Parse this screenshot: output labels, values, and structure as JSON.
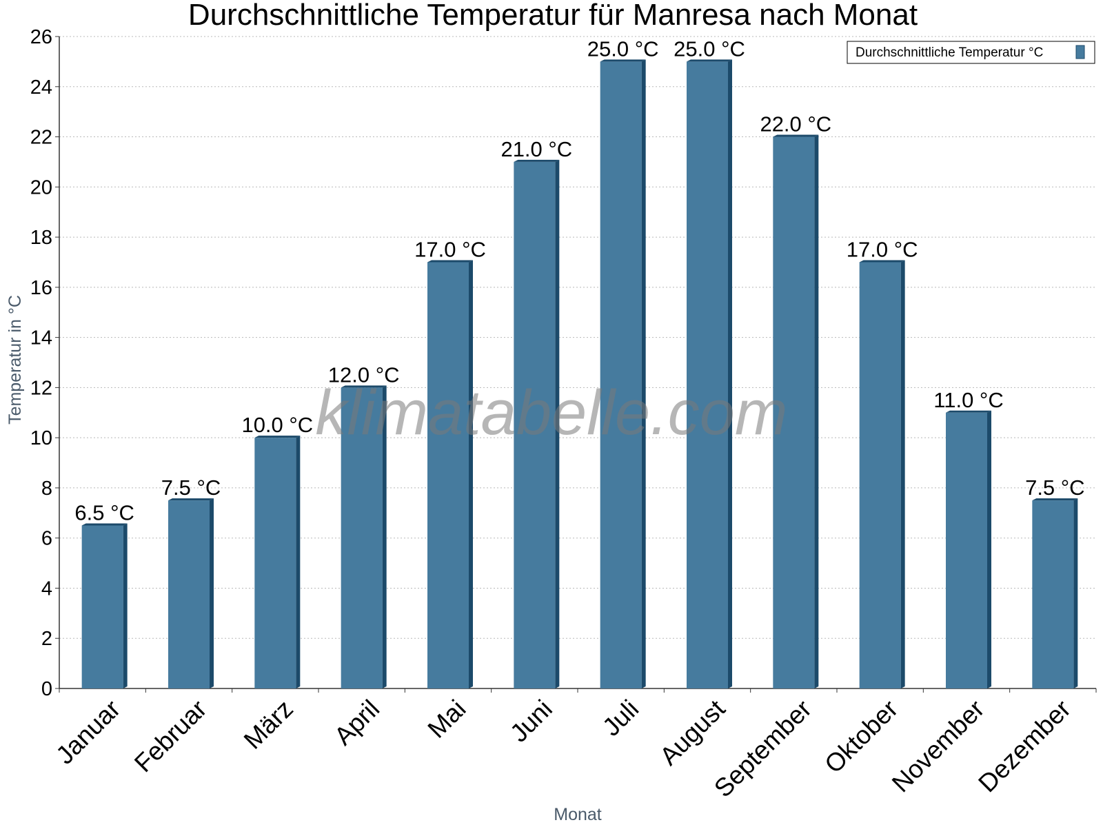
{
  "chart_data": {
    "type": "bar",
    "title": "Durchschnittliche Temperatur für Manresa nach Monat",
    "xlabel": "Monat",
    "ylabel": "Temperatur in °C",
    "categories": [
      "Januar",
      "Februar",
      "März",
      "April",
      "Mai",
      "Juni",
      "Juli",
      "August",
      "September",
      "Oktober",
      "November",
      "Dezember"
    ],
    "series": [
      {
        "name": "Durchschnittliche Temperatur °C",
        "values": [
          6.5,
          7.5,
          10.0,
          12.0,
          17.0,
          21.0,
          25.0,
          25.0,
          22.0,
          17.0,
          11.0,
          7.5
        ],
        "data_labels": [
          "6.5 °C",
          "7.5 °C",
          "10.0 °C",
          "12.0 °C",
          "17.0 °C",
          "21.0 °C",
          "25.0 °C",
          "25.0 °C",
          "22.0 °C",
          "17.0 °C",
          "11.0 °C",
          "7.5 °C"
        ]
      }
    ],
    "ylim": [
      0,
      26
    ],
    "yticks": [
      0,
      2,
      4,
      6,
      8,
      10,
      12,
      14,
      16,
      18,
      20,
      22,
      24,
      26
    ],
    "grid": true,
    "legend_position": "top-right",
    "colors": {
      "bar_front": "#467b9e",
      "bar_side": "#1c4a6a",
      "grid": "#b8b8b8",
      "axis": "#333333"
    },
    "watermark": "klimatabelle.com"
  }
}
